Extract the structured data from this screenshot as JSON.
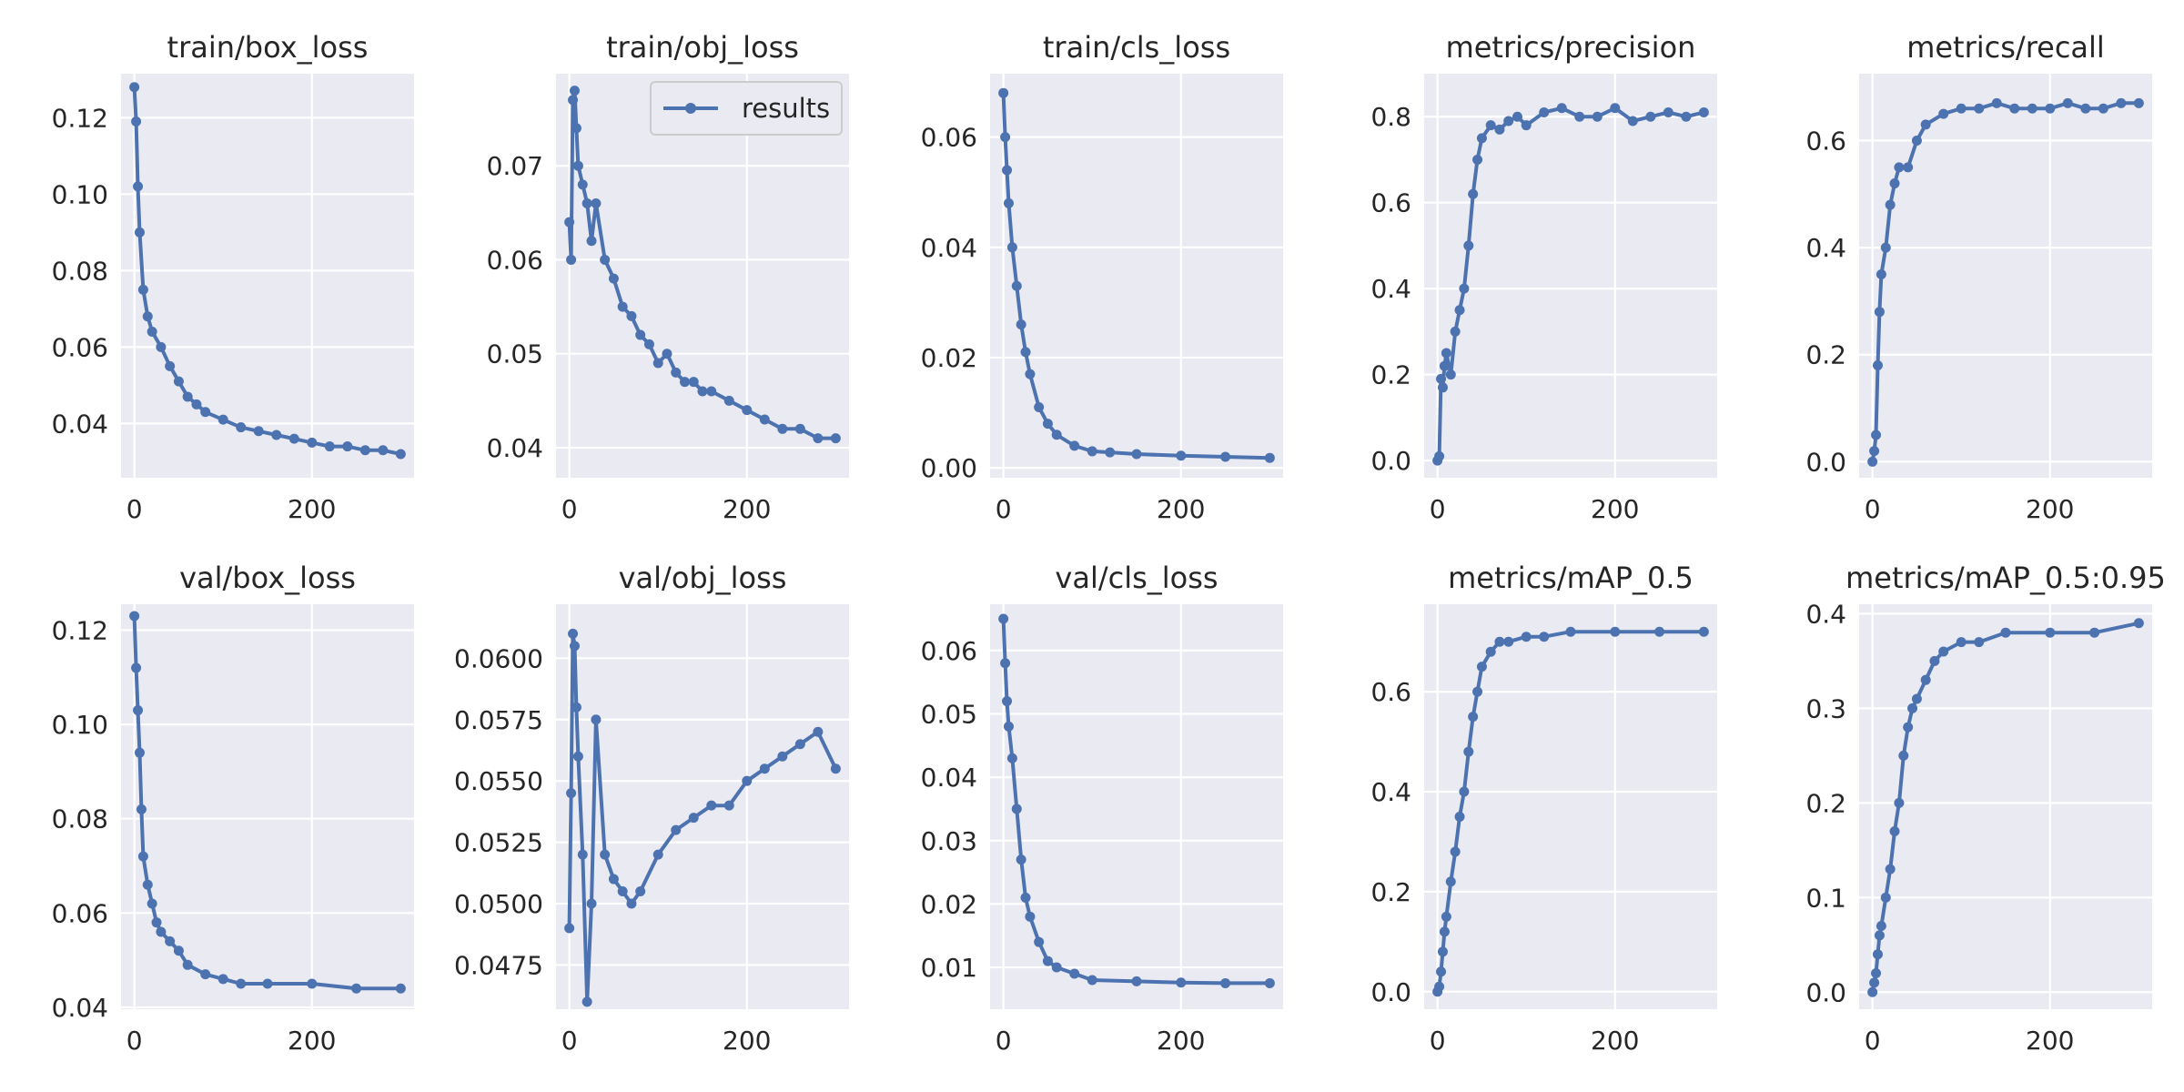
{
  "chart_data": [
    {
      "type": "line",
      "title": "train/box_loss",
      "xlabel": "",
      "ylabel": "",
      "xlim": [
        -15,
        315
      ],
      "ylim": [
        0.0258,
        0.1315
      ],
      "xticks": [
        0,
        200
      ],
      "yticks": [
        0.04,
        0.06,
        0.08,
        0.1,
        0.12
      ],
      "ytick_labels": [
        "0.04",
        "0.06",
        "0.08",
        "0.10",
        "0.12"
      ],
      "grid": true,
      "series": [
        {
          "x": [
            0,
            2,
            4,
            6,
            10,
            15,
            20,
            30,
            40,
            50,
            60,
            70,
            80,
            100,
            120,
            140,
            160,
            180,
            200,
            220,
            240,
            260,
            280,
            300
          ],
          "y": [
            0.128,
            0.119,
            0.102,
            0.09,
            0.075,
            0.068,
            0.064,
            0.06,
            0.055,
            0.051,
            0.047,
            0.045,
            0.043,
            0.041,
            0.039,
            0.038,
            0.037,
            0.036,
            0.035,
            0.034,
            0.034,
            0.033,
            0.033,
            0.032
          ]
        }
      ]
    },
    {
      "type": "line",
      "title": "train/obj_loss",
      "xlabel": "",
      "ylabel": "",
      "xlim": [
        -15,
        315
      ],
      "ylim": [
        0.0368,
        0.0798
      ],
      "xticks": [
        0,
        200
      ],
      "yticks": [
        0.04,
        0.05,
        0.06,
        0.07
      ],
      "ytick_labels": [
        "0.04",
        "0.05",
        "0.06",
        "0.07"
      ],
      "grid": true,
      "legend": {
        "label": "results",
        "position": "upper-right"
      },
      "series": [
        {
          "name": "results",
          "x": [
            0,
            2,
            4,
            6,
            8,
            10,
            15,
            20,
            25,
            30,
            40,
            50,
            60,
            70,
            80,
            90,
            100,
            110,
            120,
            130,
            140,
            150,
            160,
            180,
            200,
            220,
            240,
            260,
            280,
            300
          ],
          "y": [
            0.064,
            0.06,
            0.077,
            0.078,
            0.074,
            0.07,
            0.068,
            0.066,
            0.062,
            0.066,
            0.06,
            0.058,
            0.055,
            0.054,
            0.052,
            0.051,
            0.049,
            0.05,
            0.048,
            0.047,
            0.047,
            0.046,
            0.046,
            0.045,
            0.044,
            0.043,
            0.042,
            0.042,
            0.041,
            0.041
          ]
        }
      ]
    },
    {
      "type": "line",
      "title": "train/cls_loss",
      "xlabel": "",
      "ylabel": "",
      "xlim": [
        -15,
        315
      ],
      "ylim": [
        -0.0018,
        0.0715
      ],
      "xticks": [
        0,
        200
      ],
      "yticks": [
        0.0,
        0.02,
        0.04,
        0.06
      ],
      "ytick_labels": [
        "0.00",
        "0.02",
        "0.04",
        "0.06"
      ],
      "grid": true,
      "series": [
        {
          "x": [
            0,
            2,
            4,
            6,
            10,
            15,
            20,
            25,
            30,
            40,
            50,
            60,
            80,
            100,
            120,
            150,
            200,
            250,
            300
          ],
          "y": [
            0.068,
            0.06,
            0.054,
            0.048,
            0.04,
            0.033,
            0.026,
            0.021,
            0.017,
            0.011,
            0.008,
            0.006,
            0.004,
            0.003,
            0.0028,
            0.0025,
            0.0022,
            0.002,
            0.0018
          ]
        }
      ]
    },
    {
      "type": "line",
      "title": "metrics/precision",
      "xlabel": "",
      "ylabel": "",
      "xlim": [
        -15,
        315
      ],
      "ylim": [
        -0.04,
        0.9
      ],
      "xticks": [
        0,
        200
      ],
      "yticks": [
        0.0,
        0.2,
        0.4,
        0.6,
        0.8
      ],
      "ytick_labels": [
        "0.0",
        "0.2",
        "0.4",
        "0.6",
        "0.8"
      ],
      "grid": true,
      "series": [
        {
          "x": [
            0,
            2,
            4,
            6,
            8,
            10,
            15,
            20,
            25,
            30,
            35,
            40,
            45,
            50,
            60,
            70,
            80,
            90,
            100,
            120,
            140,
            160,
            180,
            200,
            220,
            240,
            260,
            280,
            300
          ],
          "y": [
            0.0,
            0.01,
            0.19,
            0.17,
            0.22,
            0.25,
            0.2,
            0.3,
            0.35,
            0.4,
            0.5,
            0.62,
            0.7,
            0.75,
            0.78,
            0.77,
            0.79,
            0.8,
            0.78,
            0.81,
            0.82,
            0.8,
            0.8,
            0.82,
            0.79,
            0.8,
            0.81,
            0.8,
            0.81
          ]
        }
      ]
    },
    {
      "type": "line",
      "title": "metrics/recall",
      "xlabel": "",
      "ylabel": "",
      "xlim": [
        -15,
        315
      ],
      "ylim": [
        -0.03,
        0.725
      ],
      "xticks": [
        0,
        200
      ],
      "yticks": [
        0.0,
        0.2,
        0.4,
        0.6
      ],
      "ytick_labels": [
        "0.0",
        "0.2",
        "0.4",
        "0.6"
      ],
      "grid": true,
      "series": [
        {
          "x": [
            0,
            2,
            4,
            6,
            8,
            10,
            15,
            20,
            25,
            30,
            40,
            50,
            60,
            80,
            100,
            120,
            140,
            160,
            180,
            200,
            220,
            240,
            260,
            280,
            300
          ],
          "y": [
            0.0,
            0.02,
            0.05,
            0.18,
            0.28,
            0.35,
            0.4,
            0.48,
            0.52,
            0.55,
            0.55,
            0.6,
            0.63,
            0.65,
            0.66,
            0.66,
            0.67,
            0.66,
            0.66,
            0.66,
            0.67,
            0.66,
            0.66,
            0.67,
            0.67
          ]
        }
      ]
    },
    {
      "type": "line",
      "title": "val/box_loss",
      "xlabel": "",
      "ylabel": "",
      "xlim": [
        -15,
        315
      ],
      "ylim": [
        0.0396,
        0.1255
      ],
      "xticks": [
        0,
        200
      ],
      "yticks": [
        0.04,
        0.06,
        0.08,
        0.1,
        0.12
      ],
      "ytick_labels": [
        "0.04",
        "0.06",
        "0.08",
        "0.10",
        "0.12"
      ],
      "grid": true,
      "series": [
        {
          "x": [
            0,
            2,
            4,
            6,
            8,
            10,
            15,
            20,
            25,
            30,
            40,
            50,
            60,
            80,
            100,
            120,
            150,
            200,
            250,
            300
          ],
          "y": [
            0.123,
            0.112,
            0.103,
            0.094,
            0.082,
            0.072,
            0.066,
            0.062,
            0.058,
            0.056,
            0.054,
            0.052,
            0.049,
            0.047,
            0.046,
            0.045,
            0.045,
            0.045,
            0.044,
            0.044
          ]
        }
      ]
    },
    {
      "type": "line",
      "title": "val/obj_loss",
      "xlabel": "",
      "ylabel": "",
      "xlim": [
        -15,
        315
      ],
      "ylim": [
        0.0457,
        0.0622
      ],
      "xticks": [
        0,
        200
      ],
      "yticks": [
        0.0475,
        0.05,
        0.0525,
        0.055,
        0.0575,
        0.06
      ],
      "ytick_labels": [
        "0.0475",
        "0.0500",
        "0.0525",
        "0.0550",
        "0.0575",
        "0.0600"
      ],
      "grid": true,
      "series": [
        {
          "x": [
            0,
            2,
            4,
            6,
            8,
            10,
            15,
            20,
            25,
            30,
            40,
            50,
            60,
            70,
            80,
            100,
            120,
            140,
            160,
            180,
            200,
            220,
            240,
            260,
            280,
            300
          ],
          "y": [
            0.049,
            0.0545,
            0.061,
            0.0605,
            0.058,
            0.056,
            0.052,
            0.046,
            0.05,
            0.0575,
            0.052,
            0.051,
            0.0505,
            0.05,
            0.0505,
            0.052,
            0.053,
            0.0535,
            0.054,
            0.054,
            0.055,
            0.0555,
            0.056,
            0.0565,
            0.057,
            0.0555
          ]
        }
      ]
    },
    {
      "type": "line",
      "title": "val/cls_loss",
      "xlabel": "",
      "ylabel": "",
      "xlim": [
        -15,
        315
      ],
      "ylim": [
        0.0034,
        0.0673
      ],
      "xticks": [
        0,
        200
      ],
      "yticks": [
        0.01,
        0.02,
        0.03,
        0.04,
        0.05,
        0.06
      ],
      "ytick_labels": [
        "0.01",
        "0.02",
        "0.03",
        "0.04",
        "0.05",
        "0.06"
      ],
      "grid": true,
      "series": [
        {
          "x": [
            0,
            2,
            4,
            6,
            10,
            15,
            20,
            25,
            30,
            40,
            50,
            60,
            80,
            100,
            150,
            200,
            250,
            300
          ],
          "y": [
            0.065,
            0.058,
            0.052,
            0.048,
            0.043,
            0.035,
            0.027,
            0.021,
            0.018,
            0.014,
            0.011,
            0.01,
            0.009,
            0.008,
            0.0078,
            0.0076,
            0.0075,
            0.0075
          ]
        }
      ]
    },
    {
      "type": "line",
      "title": "metrics/mAP_0.5",
      "xlabel": "",
      "ylabel": "",
      "xlim": [
        -15,
        315
      ],
      "ylim": [
        -0.035,
        0.775
      ],
      "xticks": [
        0,
        200
      ],
      "yticks": [
        0.0,
        0.2,
        0.4,
        0.6
      ],
      "ytick_labels": [
        "0.0",
        "0.2",
        "0.4",
        "0.6"
      ],
      "grid": true,
      "series": [
        {
          "x": [
            0,
            2,
            4,
            6,
            8,
            10,
            15,
            20,
            25,
            30,
            35,
            40,
            45,
            50,
            60,
            70,
            80,
            100,
            120,
            150,
            200,
            250,
            300
          ],
          "y": [
            0.0,
            0.01,
            0.04,
            0.08,
            0.12,
            0.15,
            0.22,
            0.28,
            0.35,
            0.4,
            0.48,
            0.55,
            0.6,
            0.65,
            0.68,
            0.7,
            0.7,
            0.71,
            0.71,
            0.72,
            0.72,
            0.72,
            0.72
          ]
        }
      ]
    },
    {
      "type": "line",
      "title": "metrics/mAP_0.5:0.95",
      "xlabel": "",
      "ylabel": "",
      "xlim": [
        -15,
        315
      ],
      "ylim": [
        -0.018,
        0.41
      ],
      "xticks": [
        0,
        200
      ],
      "yticks": [
        0.0,
        0.1,
        0.2,
        0.3,
        0.4
      ],
      "ytick_labels": [
        "0.0",
        "0.1",
        "0.2",
        "0.3",
        "0.4"
      ],
      "grid": true,
      "series": [
        {
          "x": [
            0,
            2,
            4,
            6,
            8,
            10,
            15,
            20,
            25,
            30,
            35,
            40,
            45,
            50,
            60,
            70,
            80,
            100,
            120,
            150,
            200,
            250,
            300
          ],
          "y": [
            0.0,
            0.01,
            0.02,
            0.04,
            0.06,
            0.07,
            0.1,
            0.13,
            0.17,
            0.2,
            0.25,
            0.28,
            0.3,
            0.31,
            0.33,
            0.35,
            0.36,
            0.37,
            0.37,
            0.38,
            0.38,
            0.38,
            0.39
          ]
        }
      ]
    }
  ],
  "colors": {
    "line": "#4c72b0",
    "axes_bg": "#eaeaf2",
    "grid": "#ffffff",
    "text": "#262626"
  }
}
